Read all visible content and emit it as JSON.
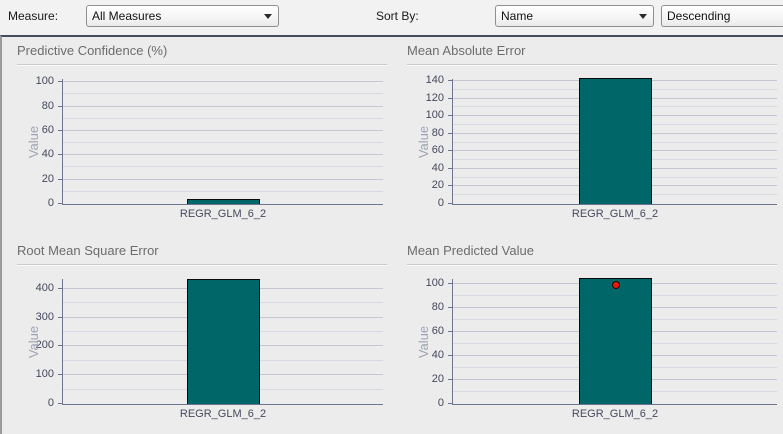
{
  "toolbar": {
    "measure_label": "Measure:",
    "measure_value": "All Measures",
    "sort_by_label": "Sort By:",
    "sort_value": "Name",
    "sort_direction_value": "Descending"
  },
  "colors": {
    "bar_fill": "#006667",
    "bar_border": "#0a0a0a",
    "marker_fill": "#e31b0c",
    "panel_bg": "#ececec",
    "grid_line": "#d8d8e2",
    "axis_line": "#70758f",
    "title_text": "#6c6c6c",
    "tick_text": "#44485c",
    "ylabel_text": "#9fa3b5"
  },
  "chart_data": [
    {
      "type": "bar",
      "title": "Predictive Confidence (%)",
      "ylabel": "Value",
      "categories": [
        "REGR_GLM_6_2"
      ],
      "values": [
        4.5
      ],
      "marker_values": [
        null
      ],
      "yticks": [
        0,
        20,
        40,
        60,
        80,
        100
      ],
      "minor_step": 10,
      "ylim": [
        0,
        103.5
      ],
      "grid": true,
      "legend": "none"
    },
    {
      "type": "bar",
      "title": "Mean Absolute Error",
      "ylabel": "Value",
      "categories": [
        "REGR_GLM_6_2"
      ],
      "values": [
        143.4
      ],
      "marker_values": [
        null
      ],
      "yticks": [
        0,
        20,
        40,
        60,
        80,
        100,
        120,
        140
      ],
      "minor_step": 10,
      "ylim": [
        0,
        143.5
      ],
      "grid": true,
      "legend": "none"
    },
    {
      "type": "bar",
      "title": "Root Mean Square Error",
      "ylabel": "Value",
      "categories": [
        "REGR_GLM_6_2"
      ],
      "values": [
        434
      ],
      "marker_values": [
        null
      ],
      "yticks": [
        0,
        100,
        200,
        300,
        400
      ],
      "minor_step": 50,
      "ylim": [
        0,
        438
      ],
      "grid": true,
      "legend": "none"
    },
    {
      "type": "bar",
      "title": "Mean Predicted Value",
      "ylabel": "Value",
      "categories": [
        "REGR_GLM_6_2"
      ],
      "values": [
        105
      ],
      "marker_values": [
        100.5
      ],
      "yticks": [
        0,
        20,
        40,
        60,
        80,
        100
      ],
      "minor_step": 10,
      "ylim": [
        0,
        105.3
      ],
      "grid": true,
      "legend": "none"
    }
  ]
}
